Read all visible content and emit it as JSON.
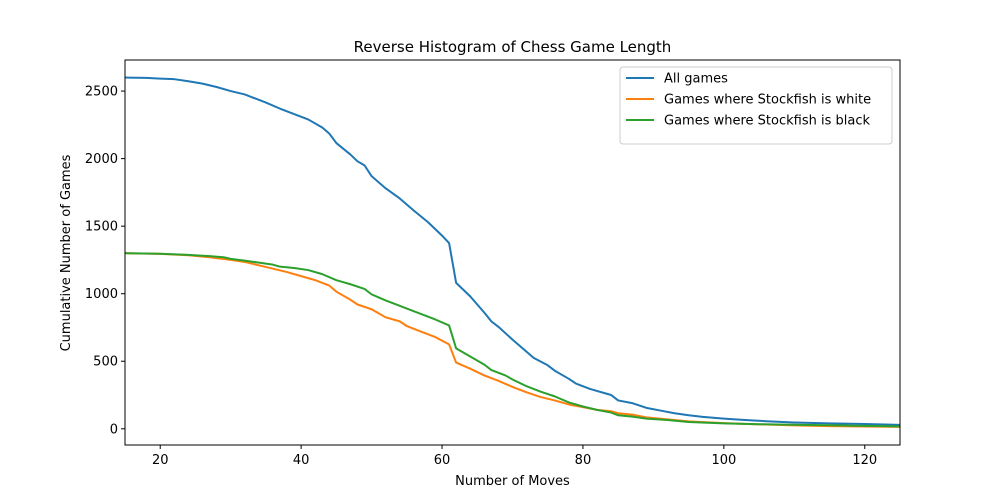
{
  "chart_data": {
    "type": "line",
    "title": "Reverse Histogram of Chess Game Length",
    "xlabel": "Number of Moves",
    "ylabel": "Cumulative Number of Games",
    "xlim": [
      15,
      125
    ],
    "ylim": [
      -120,
      2730
    ],
    "xticks": [
      20,
      40,
      60,
      80,
      100,
      120
    ],
    "yticks": [
      0,
      500,
      1000,
      1500,
      2000,
      2500
    ],
    "grid": false,
    "legend": "top-right",
    "series": [
      {
        "name": "All games",
        "color": "#1f77b4",
        "points": [
          [
            15,
            2600
          ],
          [
            18,
            2598
          ],
          [
            20,
            2592
          ],
          [
            22,
            2588
          ],
          [
            24,
            2573
          ],
          [
            26,
            2555
          ],
          [
            28,
            2530
          ],
          [
            30,
            2500
          ],
          [
            32,
            2475
          ],
          [
            33,
            2455
          ],
          [
            35,
            2415
          ],
          [
            37,
            2370
          ],
          [
            39,
            2330
          ],
          [
            41,
            2290
          ],
          [
            43,
            2230
          ],
          [
            44,
            2185
          ],
          [
            45,
            2115
          ],
          [
            47,
            2030
          ],
          [
            48,
            1980
          ],
          [
            49,
            1950
          ],
          [
            50,
            1870
          ],
          [
            52,
            1780
          ],
          [
            54,
            1705
          ],
          [
            56,
            1615
          ],
          [
            58,
            1530
          ],
          [
            60,
            1430
          ],
          [
            61,
            1375
          ],
          [
            62,
            1080
          ],
          [
            64,
            980
          ],
          [
            65,
            920
          ],
          [
            66,
            860
          ],
          [
            67,
            795
          ],
          [
            68,
            755
          ],
          [
            70,
            660
          ],
          [
            72,
            570
          ],
          [
            73,
            525
          ],
          [
            75,
            470
          ],
          [
            76,
            430
          ],
          [
            78,
            370
          ],
          [
            79,
            335
          ],
          [
            81,
            295
          ],
          [
            83,
            265
          ],
          [
            84,
            250
          ],
          [
            85,
            210
          ],
          [
            87,
            190
          ],
          [
            89,
            155
          ],
          [
            91,
            135
          ],
          [
            93,
            115
          ],
          [
            95,
            100
          ],
          [
            97,
            88
          ],
          [
            100,
            75
          ],
          [
            103,
            65
          ],
          [
            106,
            56
          ],
          [
            110,
            47
          ],
          [
            115,
            40
          ],
          [
            120,
            35
          ],
          [
            125,
            29
          ]
        ]
      },
      {
        "name": "Games where Stockfish is white",
        "color": "#ff7f0e",
        "points": [
          [
            15,
            1300
          ],
          [
            20,
            1295
          ],
          [
            24,
            1285
          ],
          [
            27,
            1270
          ],
          [
            30,
            1250
          ],
          [
            32,
            1235
          ],
          [
            34,
            1210
          ],
          [
            36,
            1185
          ],
          [
            38,
            1160
          ],
          [
            40,
            1130
          ],
          [
            42,
            1100
          ],
          [
            44,
            1060
          ],
          [
            45,
            1015
          ],
          [
            47,
            955
          ],
          [
            48,
            920
          ],
          [
            50,
            885
          ],
          [
            52,
            825
          ],
          [
            54,
            795
          ],
          [
            55,
            760
          ],
          [
            57,
            720
          ],
          [
            59,
            680
          ],
          [
            61,
            625
          ],
          [
            62,
            490
          ],
          [
            64,
            445
          ],
          [
            66,
            395
          ],
          [
            68,
            355
          ],
          [
            70,
            310
          ],
          [
            72,
            270
          ],
          [
            74,
            235
          ],
          [
            76,
            210
          ],
          [
            78,
            180
          ],
          [
            80,
            160
          ],
          [
            82,
            140
          ],
          [
            84,
            130
          ],
          [
            85,
            115
          ],
          [
            87,
            105
          ],
          [
            89,
            85
          ],
          [
            92,
            70
          ],
          [
            95,
            55
          ],
          [
            100,
            42
          ],
          [
            105,
            33
          ],
          [
            110,
            25
          ],
          [
            115,
            20
          ],
          [
            120,
            17
          ],
          [
            125,
            14
          ]
        ]
      },
      {
        "name": "Games where Stockfish is black",
        "color": "#2ca02c",
        "points": [
          [
            15,
            1300
          ],
          [
            20,
            1296
          ],
          [
            24,
            1287
          ],
          [
            27,
            1278
          ],
          [
            29,
            1270
          ],
          [
            30,
            1258
          ],
          [
            32,
            1245
          ],
          [
            34,
            1230
          ],
          [
            36,
            1215
          ],
          [
            37,
            1200
          ],
          [
            39,
            1190
          ],
          [
            41,
            1175
          ],
          [
            43,
            1145
          ],
          [
            45,
            1100
          ],
          [
            47,
            1070
          ],
          [
            49,
            1035
          ],
          [
            50,
            995
          ],
          [
            52,
            950
          ],
          [
            54,
            910
          ],
          [
            55,
            890
          ],
          [
            57,
            850
          ],
          [
            59,
            810
          ],
          [
            61,
            765
          ],
          [
            62,
            595
          ],
          [
            64,
            535
          ],
          [
            66,
            475
          ],
          [
            67,
            435
          ],
          [
            69,
            395
          ],
          [
            70,
            365
          ],
          [
            72,
            315
          ],
          [
            74,
            275
          ],
          [
            76,
            240
          ],
          [
            78,
            195
          ],
          [
            80,
            165
          ],
          [
            82,
            140
          ],
          [
            84,
            120
          ],
          [
            85,
            100
          ],
          [
            87,
            90
          ],
          [
            89,
            75
          ],
          [
            92,
            65
          ],
          [
            95,
            50
          ],
          [
            100,
            40
          ],
          [
            105,
            34
          ],
          [
            110,
            30
          ],
          [
            115,
            26
          ],
          [
            120,
            22
          ],
          [
            125,
            18
          ]
        ]
      }
    ]
  }
}
